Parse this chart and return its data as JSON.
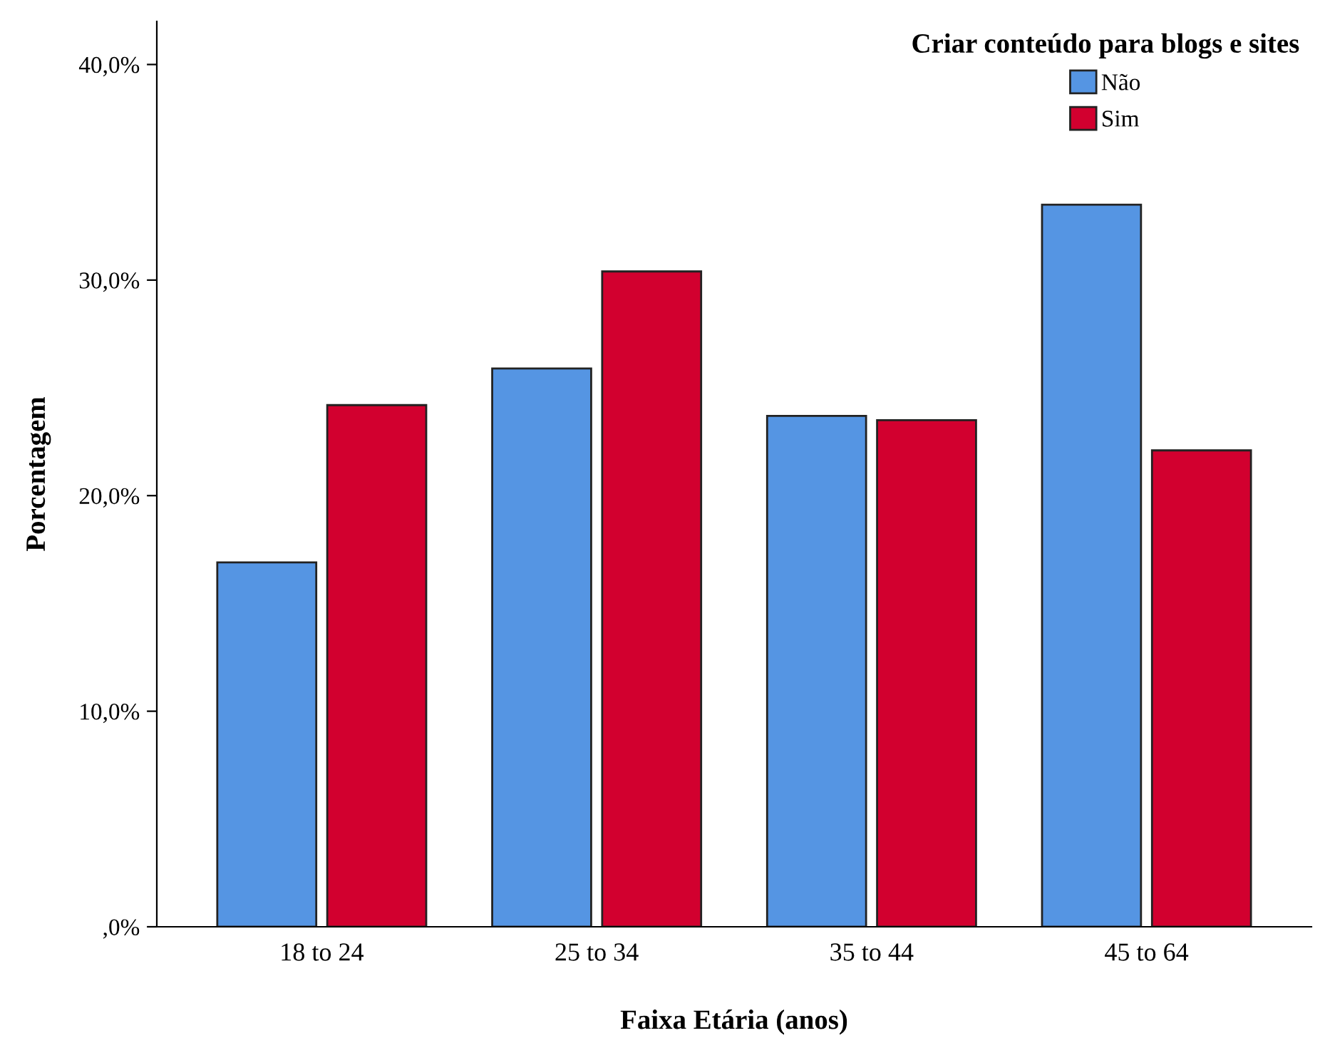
{
  "chart_data": {
    "type": "bar",
    "xlabel": "Faixa Etária (anos)",
    "ylabel": "Porcentagem",
    "legend_title": "Criar conteúdo para blogs e sites",
    "categories": [
      "18 to 24",
      "25 to 34",
      "35 to 44",
      "45 to 64"
    ],
    "series": [
      {
        "name": "Não",
        "color": "#5595e3",
        "values": [
          16.9,
          25.9,
          23.7,
          33.5
        ]
      },
      {
        "name": "Sim",
        "color": "#d2002f",
        "values": [
          24.2,
          30.4,
          23.5,
          22.1
        ]
      }
    ],
    "ylim": [
      0,
      42
    ],
    "yticks": [
      {
        "value": 0,
        "label": ",0%"
      },
      {
        "value": 10,
        "label": "10,0%"
      },
      {
        "value": 20,
        "label": "20,0%"
      },
      {
        "value": 30,
        "label": "30,0%"
      },
      {
        "value": 40,
        "label": "40,0%"
      }
    ],
    "grid": false,
    "legend": "top right"
  }
}
